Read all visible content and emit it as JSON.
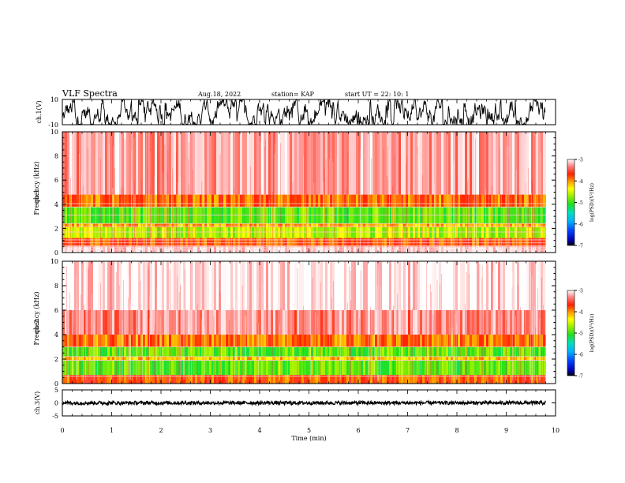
{
  "header": {
    "title": "VLF Spectra",
    "date": "Aug.18, 2022",
    "station": "station= KAP",
    "start": "start  UT =   22: 10: 1"
  },
  "chart_data": [
    {
      "type": "line",
      "id": "ch1-waveform",
      "ylabel": "ch.1(V)",
      "ylim": [
        -10,
        10
      ],
      "yticklabels": [
        "10",
        "-10"
      ],
      "xlim": [
        0,
        10
      ],
      "data_end": 9.8,
      "line_color": "#000000"
    },
    {
      "type": "heatmap",
      "id": "ch1-spectrogram",
      "ylabel": "ch.1\nFrequency  (kHz)",
      "ylim": [
        0,
        10
      ],
      "yticks": [
        0,
        2,
        4,
        6,
        8,
        10
      ],
      "xlim": [
        0,
        10
      ],
      "data_end": 9.8,
      "colorbar": {
        "label": "log(PSD)(V²/Hz)",
        "range": [
          -7,
          -3
        ],
        "ticks": [
          "-3",
          "-4",
          "-5",
          "-6",
          "-7"
        ]
      },
      "bands": [
        {
          "from": 4.8,
          "to": 10,
          "level": -3.3
        },
        {
          "from": 3.8,
          "to": 4.8,
          "level": -3.9
        },
        {
          "from": 2.4,
          "to": 3.8,
          "level": -4.9
        },
        {
          "from": 2.1,
          "to": 2.4,
          "level": -4.1
        },
        {
          "from": 1.2,
          "to": 2.1,
          "level": -4.6
        },
        {
          "from": 0.5,
          "to": 1.2,
          "level": -3.8
        },
        {
          "from": 0.0,
          "to": 0.5,
          "level": -3.1
        }
      ],
      "lines_khz": [
        0.2,
        0.4,
        0.55,
        0.8,
        1.05,
        1.7,
        2.2,
        2.4,
        3.1,
        3.75,
        4.05
      ]
    },
    {
      "type": "heatmap",
      "id": "ch2-spectrogram",
      "ylabel": "ch.2\nFrequency  (kHz)",
      "ylim": [
        0,
        10
      ],
      "yticks": [
        0,
        2,
        4,
        6,
        8,
        10
      ],
      "xlim": [
        0,
        10
      ],
      "data_end": 9.8,
      "colorbar": {
        "label": "log(PSD)(V²/Hz)",
        "range": [
          -7,
          -3
        ],
        "ticks": [
          "-3",
          "-4",
          "-5",
          "-6",
          "-7"
        ]
      },
      "bands": [
        {
          "from": 6.0,
          "to": 10,
          "level": -3.05
        },
        {
          "from": 4.0,
          "to": 6.0,
          "level": -3.4
        },
        {
          "from": 3.0,
          "to": 4.0,
          "level": -3.9
        },
        {
          "from": 2.2,
          "to": 3.0,
          "level": -4.9
        },
        {
          "from": 1.9,
          "to": 2.2,
          "level": -4.2
        },
        {
          "from": 0.7,
          "to": 1.9,
          "level": -4.9
        },
        {
          "from": 0.0,
          "to": 0.7,
          "level": -3.8
        }
      ],
      "lines_khz": [
        0.6,
        1.9,
        2.2,
        3.0
      ]
    },
    {
      "type": "line",
      "id": "ch3-waveform",
      "ylabel": "ch.3(V)",
      "ylim": [
        -5,
        5
      ],
      "yticks": [
        -5,
        0,
        5
      ],
      "xlim": [
        0,
        10
      ],
      "data_end": 9.8,
      "line_color": "#000000"
    }
  ],
  "xaxis": {
    "label": "Time  (min)",
    "ticks": [
      0,
      1,
      2,
      3,
      4,
      5,
      6,
      7,
      8,
      9,
      10
    ]
  }
}
